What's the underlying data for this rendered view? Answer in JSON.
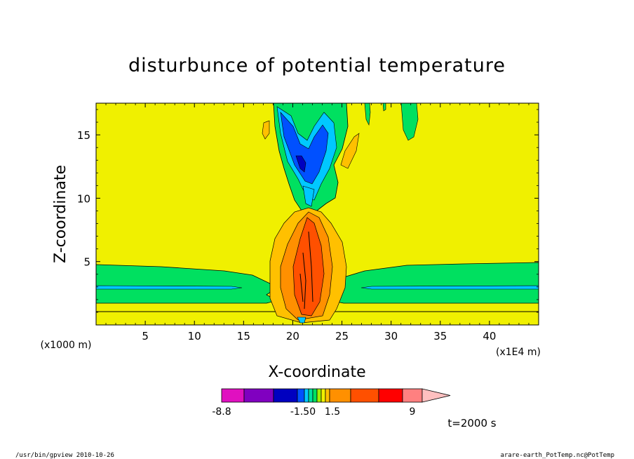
{
  "chart_data": {
    "type": "heatmap",
    "title": "disturbunce of potential temperature",
    "xlabel": "X-coordinate",
    "ylabel": "Z-coordinate",
    "x_unit_note": "(x1E4 m)",
    "y_unit_note": "(x1000 m)",
    "x_ticks": [
      5,
      10,
      15,
      20,
      25,
      30,
      35,
      40
    ],
    "y_ticks": [
      5,
      10,
      15
    ],
    "xlim": [
      0,
      45
    ],
    "ylim": [
      0,
      17.5
    ],
    "colorbar": {
      "tick_labels": [
        "-8.8",
        "-1.50",
        "1.5",
        "9"
      ],
      "colors": [
        "#e010c0",
        "#8000c0",
        "#0000c0",
        "#0050ff",
        "#00c8ff",
        "#00e0a0",
        "#00e060",
        "#a0f000",
        "#f0f000",
        "#ffc000",
        "#ff9000",
        "#ff5000",
        "#ff0000",
        "#ff8080",
        "#ffc0c0"
      ]
    },
    "background_color": "#f0f000",
    "annotation": "t=2000 s"
  },
  "footer": {
    "left": "/usr/bin/gpview  2010-10-26",
    "right": "arare-earth_PotTemp.nc@PotTemp"
  }
}
